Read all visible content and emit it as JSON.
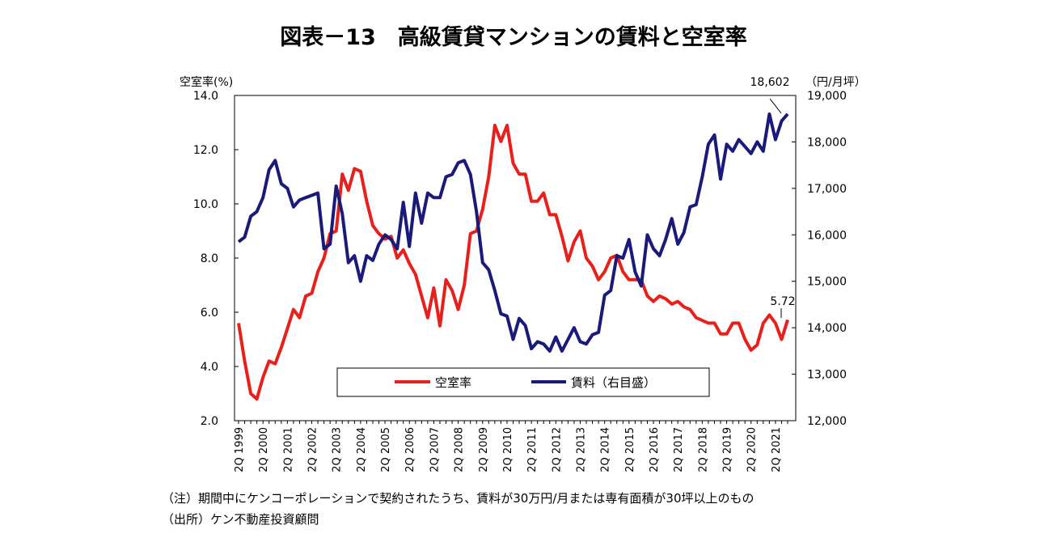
{
  "chart_data": {
    "type": "line",
    "title": "図表－13　高級賃貸マンションの賃料と空室率",
    "y_left_label": "空室率(%)",
    "y_right_label": "（円/月坪）",
    "y_left_range": [
      2.0,
      14.0
    ],
    "y_right_range": [
      12000,
      19000
    ],
    "y_left_ticks": [
      "14.0",
      "12.0",
      "10.0",
      "8.0",
      "6.0",
      "4.0",
      "2.0"
    ],
    "y_right_ticks": [
      "19,000",
      "18,000",
      "17,000",
      "16,000",
      "15,000",
      "14,000",
      "13,000",
      "12,000"
    ],
    "x_tick_labels": [
      "2Q 1999",
      "2Q 2000",
      "2Q 2001",
      "2Q 2002",
      "2Q 2003",
      "2Q 2004",
      "2Q 2005",
      "2Q 2006",
      "2Q 2007",
      "2Q 2008",
      "2Q 2009",
      "2Q 2010",
      "2Q 2011",
      "2Q 2012",
      "2Q 2013",
      "2Q 2014",
      "2Q 2015",
      "2Q 2016",
      "2Q 2017",
      "2Q 2018",
      "2Q 2019",
      "2Q 2020",
      "2Q 2021"
    ],
    "x_start": "2Q 1999",
    "x_step": "quarter",
    "legend_position": "bottom-center",
    "series": [
      {
        "name": "空室率",
        "axis": "left",
        "color": "#e8201c",
        "values": [
          5.6,
          4.2,
          3.0,
          2.8,
          3.6,
          4.2,
          4.1,
          4.7,
          5.4,
          6.1,
          5.8,
          6.6,
          6.7,
          7.5,
          8.0,
          8.9,
          9.0,
          11.1,
          10.5,
          11.3,
          11.2,
          10.1,
          9.2,
          8.9,
          8.7,
          8.8,
          8.0,
          8.3,
          7.8,
          7.4,
          6.6,
          5.8,
          6.9,
          5.5,
          7.2,
          6.8,
          6.1,
          7.0,
          8.9,
          9.0,
          9.8,
          11.0,
          12.9,
          12.3,
          12.9,
          11.5,
          11.1,
          11.1,
          10.1,
          10.1,
          10.4,
          9.6,
          9.6,
          8.8,
          7.9,
          8.6,
          9.0,
          8.0,
          7.7,
          7.2,
          7.5,
          8.0,
          8.1,
          7.5,
          7.2,
          7.2,
          7.2,
          6.6,
          6.4,
          6.6,
          6.5,
          6.3,
          6.4,
          6.2,
          6.1,
          5.8,
          5.7,
          5.6,
          5.6,
          5.2,
          5.2,
          5.6,
          5.6,
          5.0,
          4.6,
          4.8,
          5.6,
          5.9,
          5.6,
          5.0,
          5.72
        ]
      },
      {
        "name": "賃料（右目盛）",
        "axis": "right",
        "color": "#1a1a7a",
        "values": [
          15850,
          15950,
          16400,
          16500,
          16800,
          17400,
          17600,
          17100,
          17000,
          16600,
          16750,
          16800,
          16850,
          16900,
          15700,
          15800,
          17050,
          16450,
          15400,
          15550,
          15000,
          15550,
          15450,
          15800,
          16000,
          15900,
          15700,
          16700,
          15750,
          16900,
          16250,
          16900,
          16800,
          16800,
          17250,
          17300,
          17550,
          17600,
          17300,
          16500,
          15400,
          15250,
          14800,
          14300,
          14250,
          13750,
          14200,
          14050,
          13550,
          13700,
          13650,
          13500,
          13800,
          13500,
          13750,
          14000,
          13700,
          13650,
          13850,
          13900,
          14700,
          14800,
          15550,
          15500,
          15900,
          15200,
          14900,
          16000,
          15700,
          15550,
          15900,
          16350,
          15800,
          16050,
          16600,
          16650,
          17250,
          17950,
          18150,
          17200,
          17950,
          17800,
          18050,
          17900,
          17750,
          18000,
          17800,
          18600,
          18050,
          18450,
          18602
        ]
      }
    ],
    "annotations": [
      {
        "text": "18,602",
        "series": "賃料（右目盛）"
      },
      {
        "text": "5.72",
        "series": "空室率"
      }
    ]
  },
  "notes": [
    "（注）期間中にケンコーポレーションで契約されたうち、賃料が30万円/月または専有面積が30坪以上のもの",
    "（出所）ケン不動産投資顧問"
  ]
}
